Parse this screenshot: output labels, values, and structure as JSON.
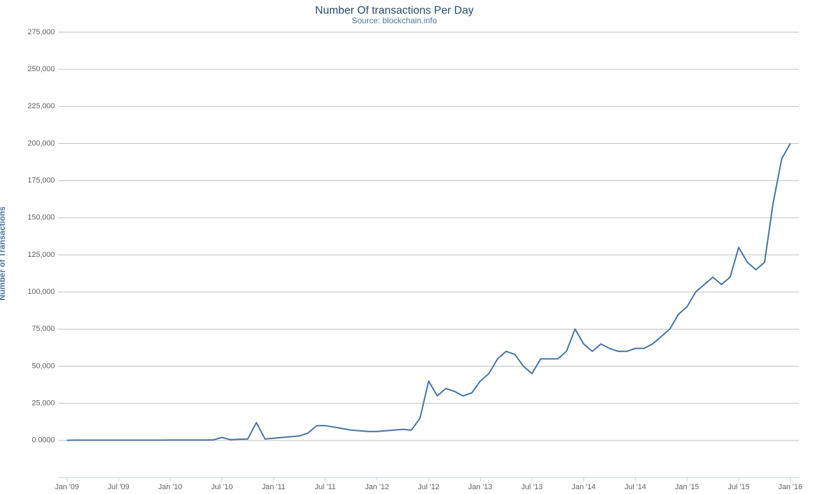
{
  "chart_data": {
    "type": "line",
    "title": "Number Of transactions Per Day",
    "subtitle": "Source: blockchain.info",
    "y_label": "Number of Transactions",
    "color": "#4572a7",
    "grid": true,
    "x": [
      "2009-01",
      "2009-02",
      "2009-03",
      "2009-04",
      "2009-05",
      "2009-06",
      "2009-07",
      "2009-08",
      "2009-09",
      "2009-10",
      "2009-11",
      "2009-12",
      "2010-01",
      "2010-02",
      "2010-03",
      "2010-04",
      "2010-05",
      "2010-06",
      "2010-07",
      "2010-08",
      "2010-09",
      "2010-10",
      "2010-11",
      "2010-12",
      "2011-01",
      "2011-02",
      "2011-03",
      "2011-04",
      "2011-05",
      "2011-06",
      "2011-07",
      "2011-08",
      "2011-09",
      "2011-10",
      "2011-11",
      "2011-12",
      "2012-01",
      "2012-02",
      "2012-03",
      "2012-04",
      "2012-05",
      "2012-06",
      "2012-07",
      "2012-08",
      "2012-09",
      "2012-10",
      "2012-11",
      "2012-12",
      "2013-01",
      "2013-02",
      "2013-03",
      "2013-04",
      "2013-05",
      "2013-06",
      "2013-07",
      "2013-08",
      "2013-09",
      "2013-10",
      "2013-11",
      "2013-12",
      "2014-01",
      "2014-02",
      "2014-03",
      "2014-04",
      "2014-05",
      "2014-06",
      "2014-07",
      "2014-08",
      "2014-09",
      "2014-10",
      "2014-11",
      "2014-12",
      "2015-01",
      "2015-02",
      "2015-03",
      "2015-04",
      "2015-05",
      "2015-06",
      "2015-07",
      "2015-08",
      "2015-09",
      "2015-10",
      "2015-11",
      "2015-12",
      "2016-01"
    ],
    "values": [
      100,
      200,
      200,
      200,
      200,
      200,
      200,
      200,
      200,
      200,
      200,
      200,
      250,
      300,
      300,
      300,
      300,
      400,
      2000,
      500,
      800,
      1000,
      12000,
      1000,
      1500,
      2000,
      2500,
      3000,
      5000,
      10000,
      10000,
      9000,
      8000,
      7000,
      6500,
      6000,
      6000,
      6500,
      7000,
      7500,
      7000,
      15000,
      40000,
      30000,
      35000,
      33000,
      30000,
      32000,
      40000,
      45000,
      55000,
      60000,
      58000,
      50000,
      45000,
      55000,
      55000,
      55000,
      60000,
      75000,
      65000,
      60000,
      65000,
      62000,
      60000,
      60000,
      62000,
      62000,
      65000,
      70000,
      75000,
      85000,
      90000,
      100000,
      105000,
      110000,
      105000,
      110000,
      130000,
      120000,
      115000,
      120000,
      160000,
      190000,
      200000
    ],
    "xlim": [
      "2008-12",
      "2016-02"
    ],
    "xticks": [
      {
        "value": "2009-01",
        "label": "Jan '09"
      },
      {
        "value": "2009-07",
        "label": "Jul '09"
      },
      {
        "value": "2010-01",
        "label": "Jan '10"
      },
      {
        "value": "2010-07",
        "label": "Jul '10"
      },
      {
        "value": "2011-01",
        "label": "Jan '11"
      },
      {
        "value": "2011-07",
        "label": "Jul '11"
      },
      {
        "value": "2012-01",
        "label": "Jan '12"
      },
      {
        "value": "2012-07",
        "label": "Jul '12"
      },
      {
        "value": "2013-01",
        "label": "Jan '13"
      },
      {
        "value": "2013-07",
        "label": "Jul '13"
      },
      {
        "value": "2014-01",
        "label": "Jan '14"
      },
      {
        "value": "2014-07",
        "label": "Jul '14"
      },
      {
        "value": "2015-01",
        "label": "Jan '15"
      },
      {
        "value": "2015-07",
        "label": "Jul '15"
      },
      {
        "value": "2016-01",
        "label": "Jan '16"
      }
    ],
    "ylim": [
      -25000,
      275000
    ],
    "yticks": [
      {
        "value": 0,
        "label": "0.0000"
      },
      {
        "value": 25000,
        "label": "25,000"
      },
      {
        "value": 50000,
        "label": "50,000"
      },
      {
        "value": 75000,
        "label": "75,000"
      },
      {
        "value": 100000,
        "label": "100,000"
      },
      {
        "value": 125000,
        "label": "125,000"
      },
      {
        "value": 150000,
        "label": "150,000"
      },
      {
        "value": 175000,
        "label": "175,000"
      },
      {
        "value": 200000,
        "label": "200,000"
      },
      {
        "value": 225000,
        "label": "225,000"
      },
      {
        "value": 250000,
        "label": "250,000"
      },
      {
        "value": 275000,
        "label": "275,000"
      }
    ]
  }
}
